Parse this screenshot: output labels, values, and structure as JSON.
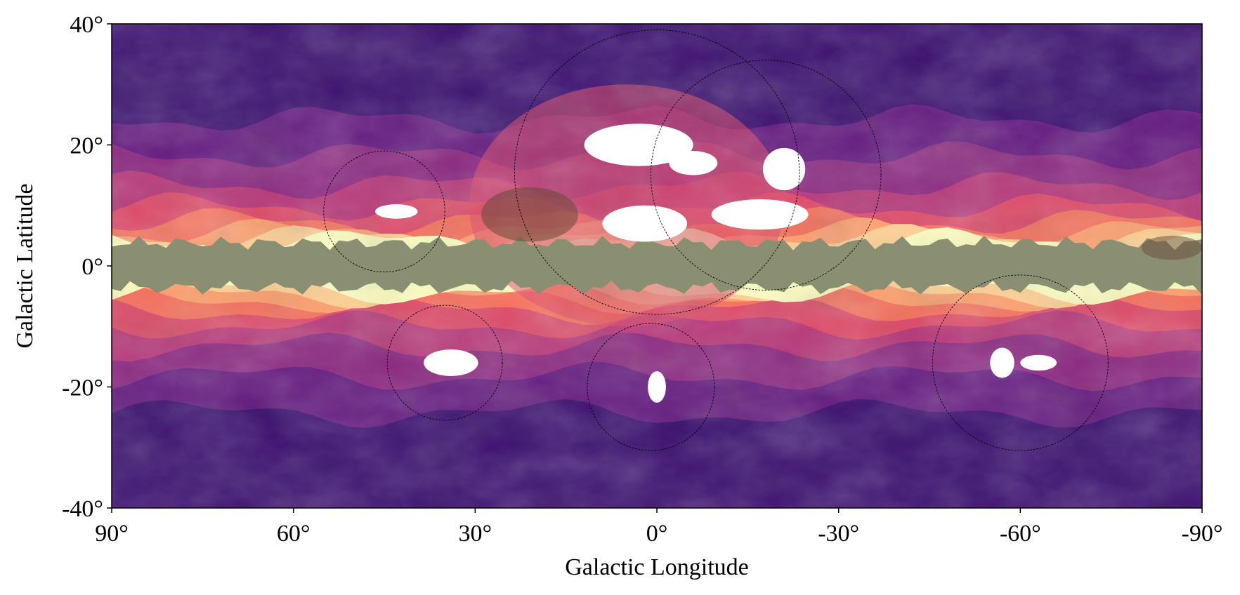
{
  "chart_data": {
    "type": "heatmap",
    "xlabel": "Galactic Longitude",
    "ylabel": "Galactic Latitude",
    "xlim": [
      90,
      -90
    ],
    "ylim": [
      -40,
      40
    ],
    "x_ticks": [
      {
        "value": 90,
        "label": "90°"
      },
      {
        "value": 60,
        "label": "60°"
      },
      {
        "value": 30,
        "label": "30°"
      },
      {
        "value": 0,
        "label": "0°"
      },
      {
        "value": -30,
        "label": "-30°"
      },
      {
        "value": -60,
        "label": "-60°"
      },
      {
        "value": -90,
        "label": "-90°"
      }
    ],
    "y_ticks": [
      {
        "value": 40,
        "label": "40°"
      },
      {
        "value": 20,
        "label": "20°"
      },
      {
        "value": 0,
        "label": "0°"
      },
      {
        "value": -20,
        "label": "-20°"
      },
      {
        "value": -40,
        "label": "-40°"
      }
    ],
    "colormap": [
      "#1f0c48",
      "#3b0f70",
      "#641a80",
      "#8c2981",
      "#b73779",
      "#de4968",
      "#f7705c",
      "#fe9f6d",
      "#fecf92",
      "#fcfdbf"
    ],
    "plane_mask_color": "#8a8f72",
    "grid": false,
    "circles": [
      {
        "l": 45,
        "b": 9,
        "r": 10
      },
      {
        "l": 35,
        "b": -16,
        "r": 9.5
      },
      {
        "l": 0,
        "b": 15.5,
        "r": 23.5
      },
      {
        "l": -18,
        "b": 15,
        "r": 19
      },
      {
        "l": 1,
        "b": -20,
        "r": 10.5
      },
      {
        "l": -60,
        "b": -16,
        "r": 14.5
      }
    ],
    "clouds": [
      {
        "l": 43,
        "b": 9,
        "rl": 3.5,
        "rb": 1.2
      },
      {
        "l": 34,
        "b": -16,
        "rl": 4.5,
        "rb": 2.2
      },
      {
        "l": 3,
        "b": 20,
        "rl": 9,
        "rb": 3.5
      },
      {
        "l": 2,
        "b": 7,
        "rl": 7,
        "rb": 3
      },
      {
        "l": -6,
        "b": 17,
        "rl": 4,
        "rb": 2
      },
      {
        "l": -17,
        "b": 8.5,
        "rl": 8,
        "rb": 2.5
      },
      {
        "l": -21,
        "b": 16,
        "rl": 3.5,
        "rb": 3.5
      },
      {
        "l": 0,
        "b": -20,
        "rl": 1.5,
        "rb": 2.6
      },
      {
        "l": -57,
        "b": -16,
        "rl": 2,
        "rb": 2.5
      },
      {
        "l": -63,
        "b": -16,
        "rl": 3,
        "rb": 1.3
      }
    ]
  }
}
